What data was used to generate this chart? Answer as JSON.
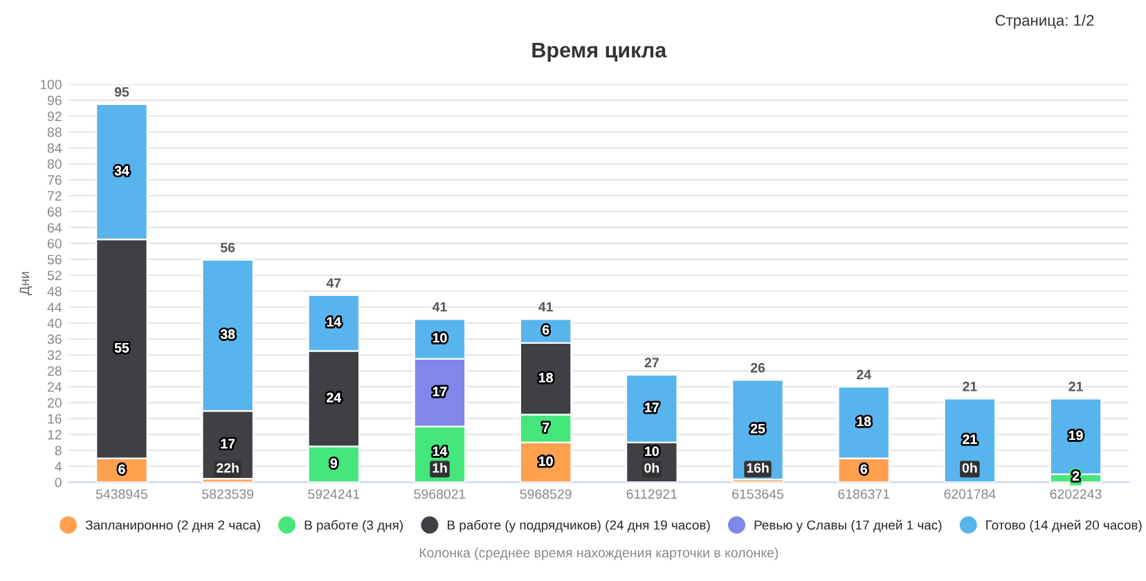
{
  "chart_data": {
    "type": "bar",
    "stacked": true,
    "title": "Время цикла",
    "xlabel": "Колонка (среднее время нахождения карточки в колонке)",
    "ylabel": "Дни",
    "categories": [
      "5438945",
      "5823539",
      "5924241",
      "5968021",
      "5968529",
      "6112921",
      "6153645",
      "6186371",
      "6201784",
      "6202243"
    ],
    "series": [
      {
        "name": "Запланиронно (2 дня 2 часа)",
        "color": "#ffa04f",
        "values": [
          6,
          0.9,
          null,
          null,
          10,
          null,
          0.7,
          6,
          null,
          null
        ],
        "value_labels": [
          "6",
          null,
          null,
          null,
          "10",
          null,
          null,
          "6",
          null,
          null
        ]
      },
      {
        "name": "В работе (3 дня)",
        "color": "#45e67b",
        "values": [
          null,
          null,
          9,
          14,
          7,
          null,
          null,
          null,
          null,
          2
        ],
        "value_labels": [
          null,
          null,
          "9",
          "14",
          "7",
          null,
          null,
          null,
          null,
          "2"
        ]
      },
      {
        "name": "В работе (у подрядчиков) (24 дня 19 часов)",
        "color": "#3f3f46",
        "values": [
          55,
          17,
          24,
          null,
          18,
          10,
          null,
          null,
          null,
          null
        ],
        "value_labels": [
          "55",
          "17",
          "24",
          null,
          "18",
          "10",
          null,
          null,
          null,
          null
        ]
      },
      {
        "name": "Ревью у Славы (17 дней 1 час)",
        "color": "#8086ea",
        "values": [
          null,
          null,
          null,
          17,
          null,
          null,
          null,
          null,
          null,
          null
        ],
        "value_labels": [
          null,
          null,
          null,
          "17",
          null,
          null,
          null,
          null,
          null,
          null
        ]
      },
      {
        "name": "Готово (14 дней 20 часов)",
        "color": "#58b4ec",
        "values": [
          34,
          38,
          14,
          10,
          6,
          17,
          25,
          18,
          21,
          19
        ],
        "value_labels": [
          "34",
          "38",
          "14",
          "10",
          "6",
          "17",
          "25",
          "18",
          "21",
          "19"
        ]
      }
    ],
    "totals": [
      "95",
      "56",
      "47",
      "41",
      "41",
      "27",
      "26",
      "24",
      "21",
      "21"
    ],
    "ylim": [
      0,
      100
    ],
    "yticks": [
      0,
      4,
      8,
      12,
      16,
      20,
      24,
      28,
      32,
      36,
      40,
      44,
      48,
      52,
      56,
      60,
      64,
      68,
      72,
      76,
      80,
      84,
      88,
      92,
      96,
      100
    ],
    "grid": "y",
    "legend": "bottom",
    "marker": "circle",
    "annotations": [
      "Страница: 1/2",
      {
        "text": "22h",
        "x": "5823539",
        "y": 0
      },
      {
        "text": "1h",
        "x": "5968021",
        "y": 0
      },
      {
        "text": "0h",
        "x": "6112921",
        "y": 0
      },
      {
        "text": "16h",
        "x": "6153645",
        "y": 0
      },
      {
        "text": "0h",
        "x": "6201784",
        "y": 0
      }
    ]
  }
}
